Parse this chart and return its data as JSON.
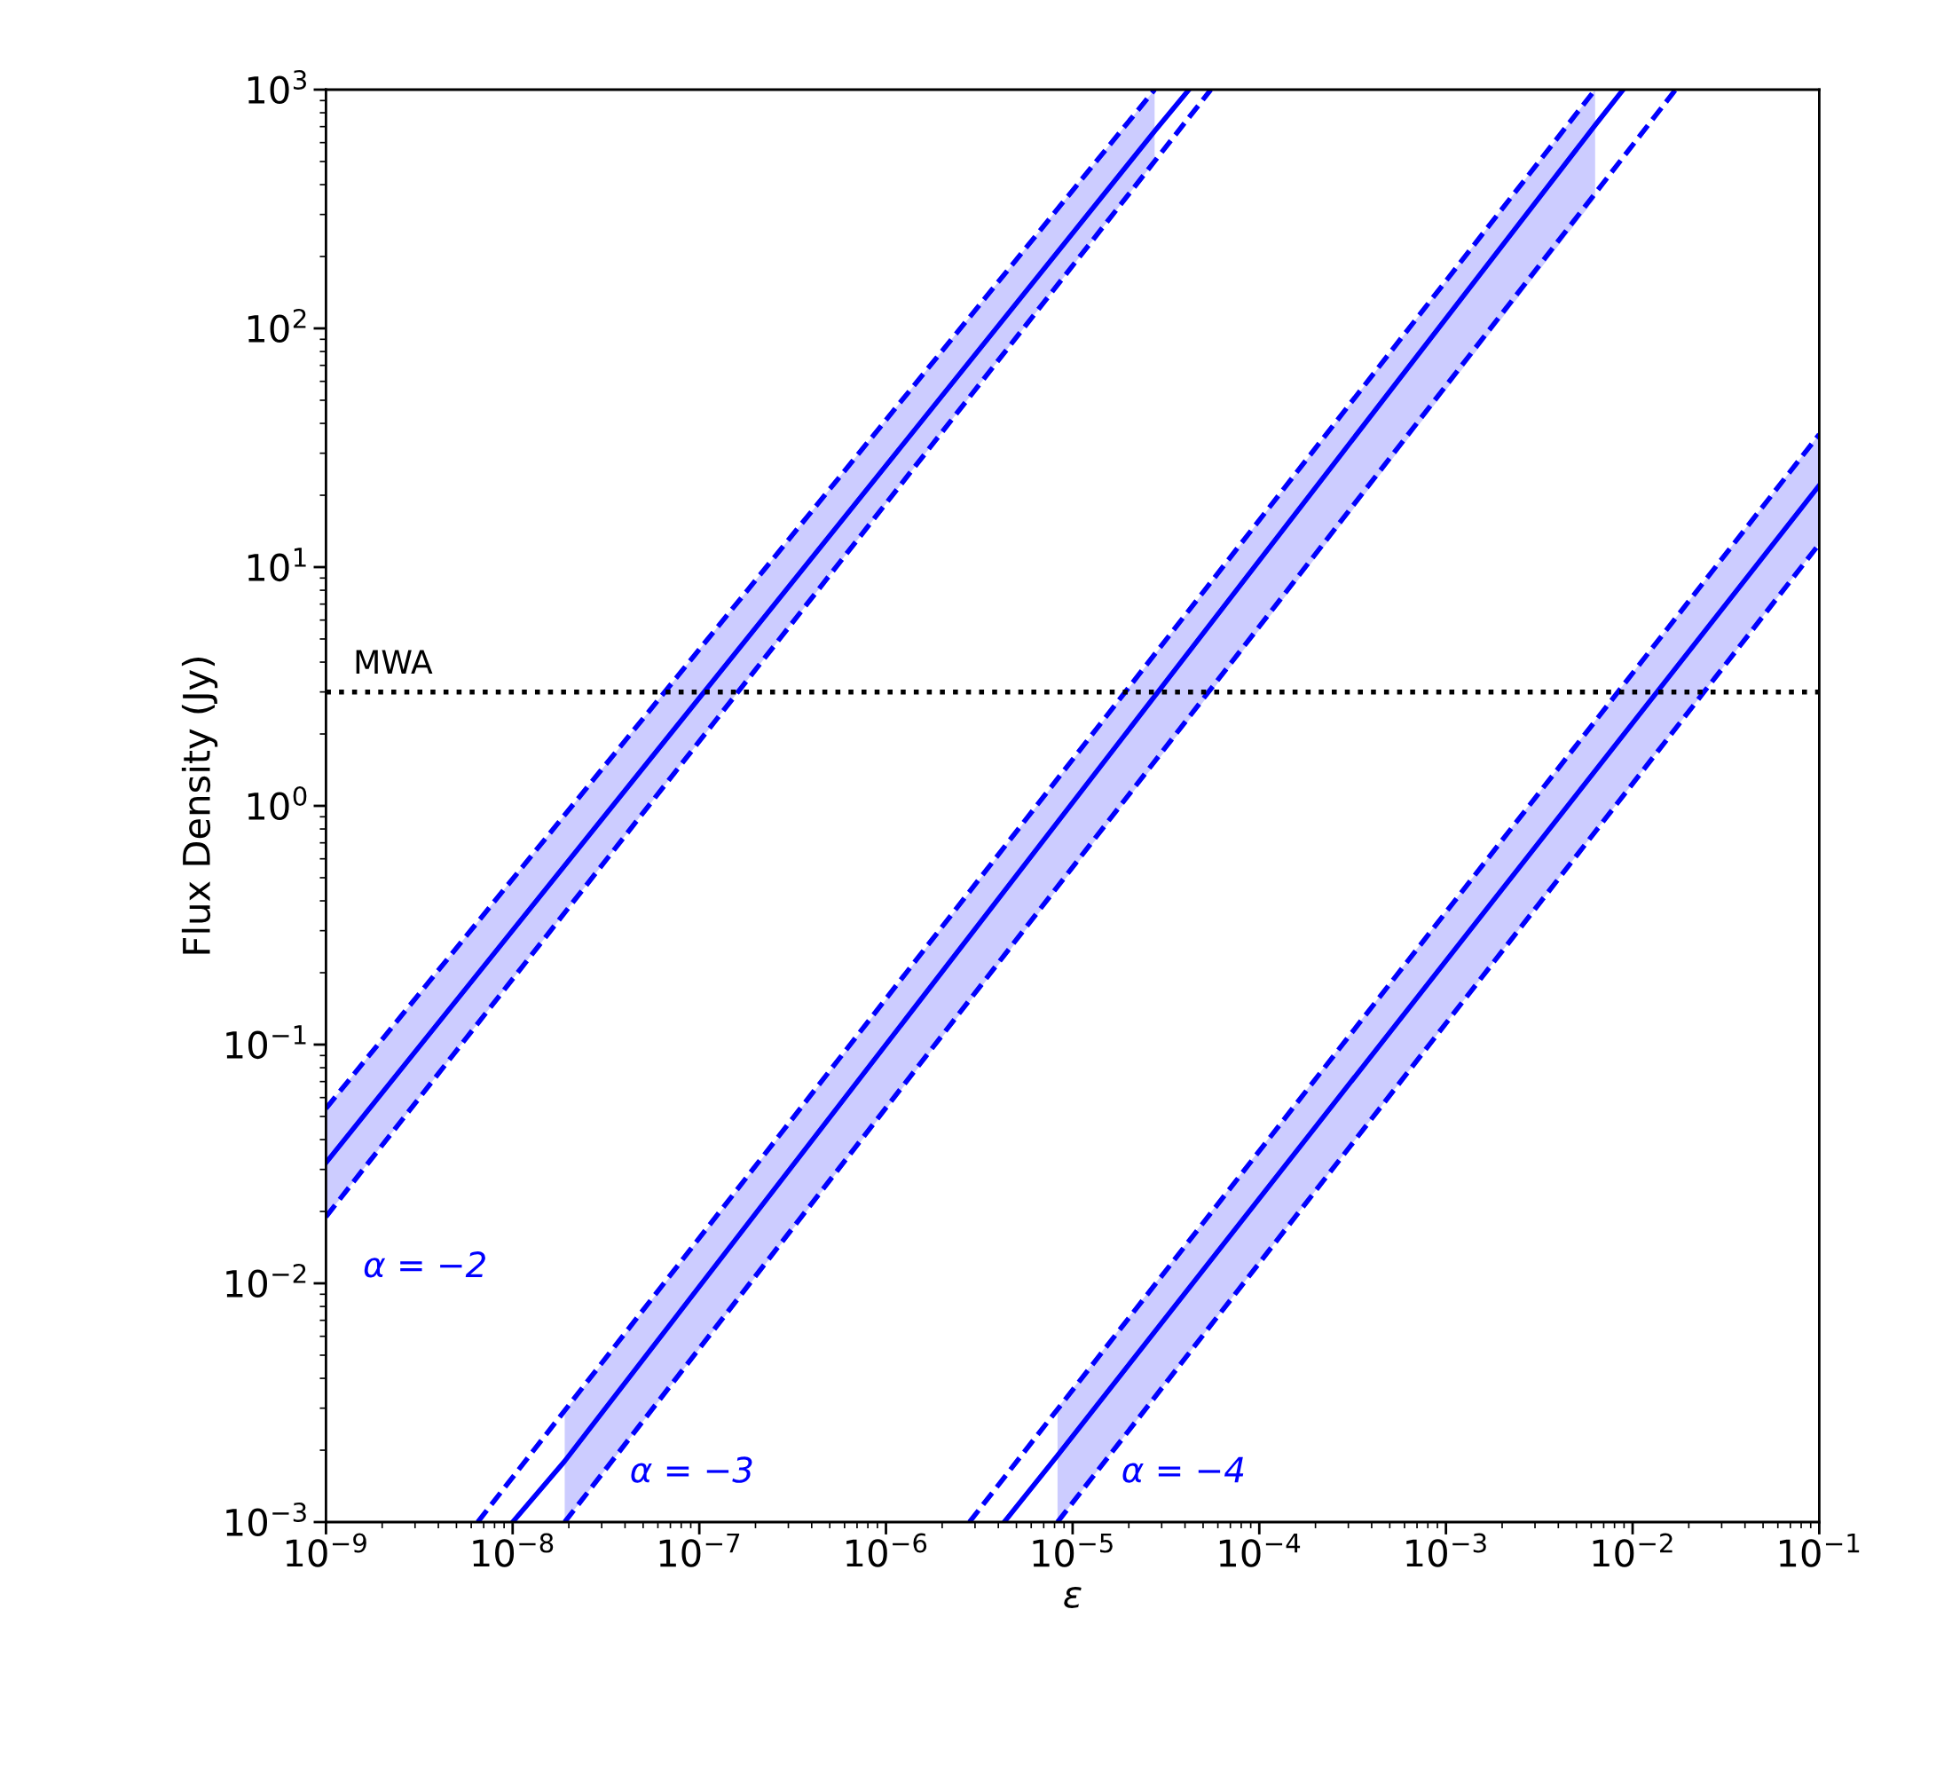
{
  "chart_data": {
    "type": "line",
    "xlabel": "ε",
    "ylabel": "Flux Density (Jy)",
    "log": "xy",
    "grid": false,
    "legend": false,
    "line_style": "solid",
    "marker": "none",
    "xlim": [
      1e-09,
      0.1
    ],
    "ylim": [
      0.001,
      1000
    ],
    "xticks": [
      {
        "value": 1e-09,
        "label": "10$^{−9}$"
      },
      {
        "value": 1e-08,
        "label": "10$^{−8}$"
      },
      {
        "value": 1e-07,
        "label": "10$^{−7}$"
      },
      {
        "value": 1e-06,
        "label": "10$^{−6}$"
      },
      {
        "value": 1e-05,
        "label": "10$^{−5}$"
      },
      {
        "value": 0.0001,
        "label": "10$^{−4}$"
      },
      {
        "value": 0.001,
        "label": "10$^{−3}$"
      },
      {
        "value": 0.01,
        "label": "10$^{−2}$"
      },
      {
        "value": 0.1,
        "label": "10$^{−1}$"
      }
    ],
    "yticks": [
      {
        "value": 0.001,
        "label": "10$^{−3}$"
      },
      {
        "value": 0.01,
        "label": "10$^{−2}$"
      },
      {
        "value": 0.1,
        "label": "10$^{−1}$"
      },
      {
        "value": 1,
        "label": "10$^{0}$"
      },
      {
        "value": 10,
        "label": "10$^{1}$"
      },
      {
        "value": 100,
        "label": "10$^{2}$"
      },
      {
        "value": 1000,
        "label": "10$^{3}$"
      }
    ],
    "series": [
      {
        "name": "α = −2",
        "color": "#0000ff",
        "x": [
          1e-09,
          2.75e-05,
          4.2e-05
        ],
        "values": [
          0.032,
          670,
          1000
        ],
        "lower": [
          0.019,
          500,
          null
        ],
        "upper": [
          0.054,
          1000,
          null
        ]
      },
      {
        "color": "#0000ff",
        "line_style": "dashed",
        "x": [
          1e-09,
          2.75e-05
        ],
        "values": [
          0.054,
          1000
        ]
      },
      {
        "color": "#0000ff",
        "line_style": "dashed",
        "x": [
          1e-09,
          5.5e-05
        ],
        "values": [
          0.019,
          1000
        ]
      },
      {
        "name": "α = −3",
        "color": "#0000ff",
        "x": [
          1e-08,
          1.9e-08,
          0.0063,
          0.0089
        ],
        "values": [
          0.001,
          0.0018,
          710,
          1000
        ],
        "lower": [
          null,
          0.001,
          350,
          null
        ],
        "upper": [
          null,
          0.0029,
          1000,
          null
        ]
      },
      {
        "color": "#0000ff",
        "line_style": "dashed",
        "x": [
          6.5e-09,
          0.0063
        ],
        "values": [
          0.001,
          1000
        ]
      },
      {
        "color": "#0000ff",
        "line_style": "dashed",
        "x": [
          1.9e-08,
          0.017
        ],
        "values": [
          0.001,
          1000
        ]
      },
      {
        "name": "α = −4",
        "color": "#0000ff",
        "x": [
          4.3e-06,
          8.3e-06,
          0.1
        ],
        "values": [
          0.001,
          0.0019,
          22
        ],
        "lower": [
          null,
          0.001,
          12.5
        ],
        "upper": [
          null,
          0.003,
          36
        ]
      },
      {
        "color": "#0000ff",
        "line_style": "dashed",
        "x": [
          2.8e-06,
          0.1
        ],
        "values": [
          0.001,
          36
        ]
      },
      {
        "color": "#0000ff",
        "line_style": "dashed",
        "x": [
          8.3e-06,
          0.1
        ],
        "values": [
          0.001,
          12.5
        ]
      }
    ],
    "ref_lines": [
      {
        "axis": "y",
        "value": 3,
        "label": "MWA",
        "color": "#000000",
        "line_style": "dotted"
      }
    ]
  }
}
